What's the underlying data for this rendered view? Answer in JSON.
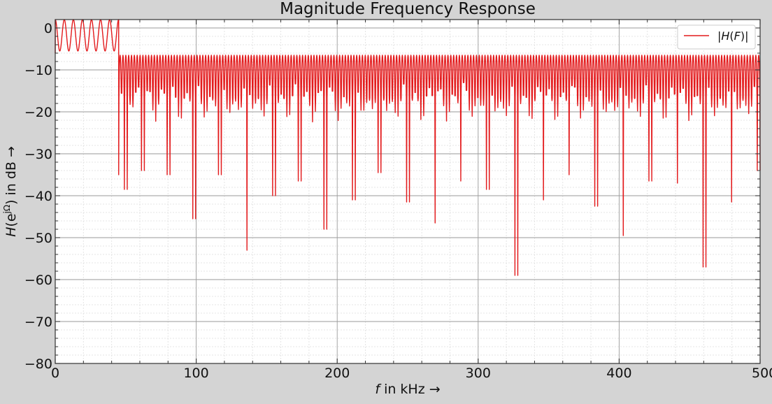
{
  "chart_data": {
    "type": "line",
    "title": "Magnitude Frequency Response",
    "xlabel": {
      "var": "f",
      "rest": " in kHz →"
    },
    "ylabel": {
      "var": "H",
      "open": "(e",
      "sup": "jΩ",
      "rest": ") in dB  →"
    },
    "xlim": [
      0,
      500
    ],
    "ylim": [
      -80,
      2
    ],
    "x_ticks": [
      0,
      100,
      200,
      300,
      400,
      500
    ],
    "x_tick_labels": [
      "0",
      "100",
      "200",
      "300",
      "400",
      "500"
    ],
    "y_ticks": [
      0,
      -10,
      -20,
      -30,
      -40,
      -50,
      -60,
      -70,
      -80
    ],
    "y_tick_labels": [
      "0",
      "−10",
      "−20",
      "−30",
      "−40",
      "−50",
      "−60",
      "−70",
      "−80"
    ],
    "grid": true,
    "minor_grid": true,
    "legend": {
      "position": "top-right",
      "entries": [
        {
          "open": "|",
          "var": "H",
          "mid": "(",
          "var2": "F",
          "close": ")|"
        }
      ]
    },
    "series": [
      {
        "color": "#e31a1c",
        "passband": {
          "x_range": [
            0,
            45
          ],
          "ripple_peak_db": 2,
          "ripple_trough_db": -5.5,
          "ripple_count": 7
        },
        "stopband": {
          "x_range": [
            45,
            500
          ],
          "peak_db": -6.5,
          "null_count": 225,
          "deep_nulls": [
            {
              "x": 45.5,
              "y": -35
            },
            {
              "x": 50,
              "y": -38.5
            },
            {
              "x": 62,
              "y": -34
            },
            {
              "x": 80,
              "y": -35
            },
            {
              "x": 98.5,
              "y": -45.5
            },
            {
              "x": 117,
              "y": -35
            },
            {
              "x": 136,
              "y": -53
            },
            {
              "x": 155,
              "y": -40
            },
            {
              "x": 173,
              "y": -36.5
            },
            {
              "x": 192,
              "y": -48
            },
            {
              "x": 212,
              "y": -41
            },
            {
              "x": 230,
              "y": -34.5
            },
            {
              "x": 250,
              "y": -41.5
            },
            {
              "x": 269,
              "y": -46.5
            },
            {
              "x": 288,
              "y": -36.5
            },
            {
              "x": 307,
              "y": -38.5
            },
            {
              "x": 327,
              "y": -59
            },
            {
              "x": 346,
              "y": -41
            },
            {
              "x": 365,
              "y": -35
            },
            {
              "x": 384,
              "y": -42.5
            },
            {
              "x": 403,
              "y": -49.5
            },
            {
              "x": 422,
              "y": -36.5
            },
            {
              "x": 441,
              "y": -37
            },
            {
              "x": 460.5,
              "y": -57
            },
            {
              "x": 479.5,
              "y": -41.5
            },
            {
              "x": 498.5,
              "y": -34
            }
          ]
        }
      }
    ]
  }
}
